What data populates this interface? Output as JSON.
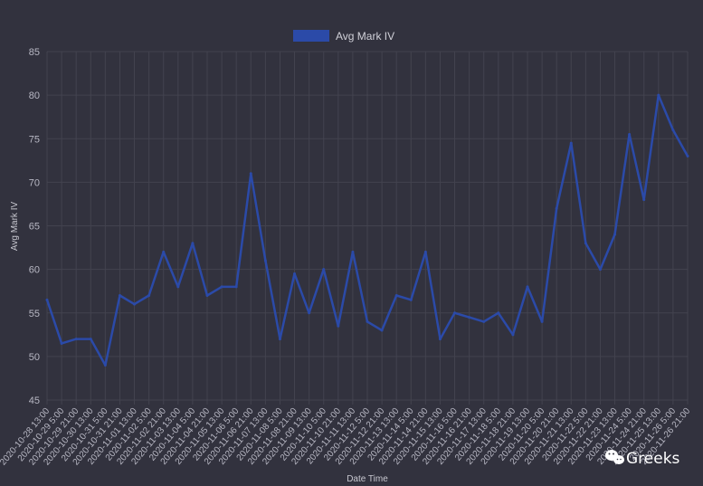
{
  "chart_data": {
    "type": "line",
    "title": "",
    "legend": {
      "label": "Avg Mark IV",
      "position": "top",
      "color": "#2b4aa8"
    },
    "xlabel": "Date Time",
    "ylabel": "Avg Mark IV",
    "ylim": [
      45,
      85
    ],
    "yticks": [
      45,
      50,
      55,
      60,
      65,
      70,
      75,
      80,
      85
    ],
    "grid": true,
    "xtick_labels": [
      "2020-10-28 13:00",
      "2020-10-29 5:00",
      "2020-10-29 21:00",
      "2020-10-30 13:00",
      "2020-10-31 5:00",
      "2020-10-31 21:00",
      "2020-11-01 13:00",
      "2020-11-02 5:00",
      "2020-11-02 21:00",
      "2020-11-03 13:00",
      "2020-11-04 5:00",
      "2020-11-04 21:00",
      "2020-11-05 13:00",
      "2020-11-06 5:00",
      "2020-11-06 21:00",
      "2020-11-07 13:00",
      "2020-11-08 5:00",
      "2020-11-08 21:00",
      "2020-11-09 13:00",
      "2020-11-10 5:00",
      "2020-11-10 21:00",
      "2020-11-11 13:00",
      "2020-11-12 5:00",
      "2020-11-12 21:00",
      "2020-11-13 13:00",
      "2020-11-14 5:00",
      "2020-11-14 21:00",
      "2020-11-15 13:00",
      "2020-11-16 5:00",
      "2020-11-16 21:00",
      "2020-11-17 13:00",
      "2020-11-18 5:00",
      "2020-11-18 21:00",
      "2020-11-19 13:00",
      "2020-11-20 5:00",
      "2020-11-20 21:00",
      "2020-11-21 13:00",
      "2020-11-22 5:00",
      "2020-11-22 21:00",
      "2020-11-23 13:00",
      "2020-11-24 5:00",
      "2020-11-24 21:00",
      "2020-11-25 13:00",
      "2020-11-26 5:00",
      "2020-11-26 21:00"
    ],
    "series": [
      {
        "name": "Avg Mark IV",
        "color": "#2b4aa8",
        "x": [
          "2020-10-28 13:00",
          "2020-10-29 5:00",
          "2020-10-29 21:00",
          "2020-10-30 13:00",
          "2020-10-31 5:00",
          "2020-10-31 21:00",
          "2020-11-01 13:00",
          "2020-11-02 5:00",
          "2020-11-02 21:00",
          "2020-11-03 13:00",
          "2020-11-04 5:00",
          "2020-11-04 21:00",
          "2020-11-05 13:00",
          "2020-11-06 5:00",
          "2020-11-06 21:00",
          "2020-11-07 13:00",
          "2020-11-08 5:00",
          "2020-11-08 21:00",
          "2020-11-09 13:00",
          "2020-11-10 5:00",
          "2020-11-10 21:00",
          "2020-11-11 13:00",
          "2020-11-12 5:00",
          "2020-11-12 21:00",
          "2020-11-13 13:00",
          "2020-11-14 5:00",
          "2020-11-14 21:00",
          "2020-11-15 13:00",
          "2020-11-16 5:00",
          "2020-11-16 21:00",
          "2020-11-17 13:00",
          "2020-11-18 5:00",
          "2020-11-18 21:00",
          "2020-11-19 13:00",
          "2020-11-20 5:00",
          "2020-11-20 21:00",
          "2020-11-21 13:00",
          "2020-11-22 5:00",
          "2020-11-22 21:00",
          "2020-11-23 13:00",
          "2020-11-24 5:00",
          "2020-11-24 21:00",
          "2020-11-25 13:00",
          "2020-11-26 5:00",
          "2020-11-26 21:00"
        ],
        "values": [
          56.5,
          51.5,
          52.0,
          52.0,
          49.0,
          57.0,
          56.0,
          57.0,
          62.0,
          58.0,
          63.0,
          57.0,
          58.0,
          58.0,
          71.0,
          61.0,
          52.0,
          59.5,
          55.0,
          60.0,
          53.5,
          62.0,
          54.0,
          53.0,
          57.0,
          56.5,
          62.0,
          52.0,
          55.0,
          54.5,
          54.0,
          55.0,
          52.5,
          58.0,
          54.0,
          67.0,
          74.5,
          63.0,
          60.0,
          64.0,
          75.5,
          68.0,
          80.0,
          76.0,
          73.0
        ]
      }
    ]
  },
  "watermark": {
    "text": "Greeks",
    "icon": "wechat-icon"
  }
}
